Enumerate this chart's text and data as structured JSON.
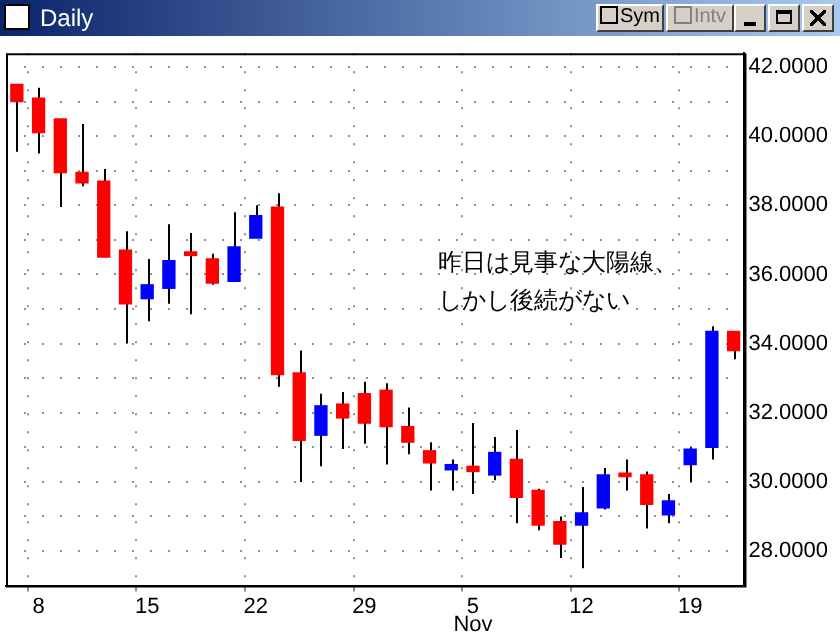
{
  "chart_data": {
    "type": "candlestick",
    "title": "Daily",
    "categories": [
      null,
      "8",
      null,
      null,
      null,
      null,
      "15",
      null,
      null,
      null,
      null,
      "22",
      null,
      null,
      null,
      null,
      "29",
      null,
      null,
      null,
      null,
      "5",
      null,
      null,
      null,
      null,
      "12",
      null,
      null,
      null,
      null,
      "19",
      null,
      null
    ],
    "ohlc": [
      [
        41.5,
        41.5,
        39.55,
        41.0
      ],
      [
        41.1,
        41.4,
        39.5,
        40.1
      ],
      [
        40.5,
        40.5,
        37.95,
        38.95
      ],
      [
        38.95,
        40.35,
        38.55,
        38.65
      ],
      [
        38.7,
        39.05,
        36.5,
        36.5
      ],
      [
        36.7,
        37.25,
        34.0,
        35.15
      ],
      [
        35.3,
        36.45,
        34.65,
        35.7
      ],
      [
        35.6,
        37.45,
        35.15,
        36.4
      ],
      [
        36.65,
        37.2,
        34.85,
        36.55
      ],
      [
        36.45,
        36.6,
        35.7,
        35.75
      ],
      [
        35.8,
        37.8,
        35.8,
        36.8
      ],
      [
        37.05,
        38.0,
        37.05,
        37.7
      ],
      [
        37.95,
        38.35,
        32.75,
        33.1
      ],
      [
        33.15,
        33.8,
        30.0,
        31.2
      ],
      [
        31.35,
        32.55,
        30.45,
        32.2
      ],
      [
        32.25,
        32.6,
        30.95,
        31.85
      ],
      [
        32.55,
        32.9,
        31.1,
        31.7
      ],
      [
        32.65,
        32.85,
        30.5,
        31.6
      ],
      [
        31.6,
        32.15,
        30.8,
        31.15
      ],
      [
        30.9,
        31.15,
        29.75,
        30.55
      ],
      [
        30.35,
        30.65,
        29.75,
        30.5
      ],
      [
        30.45,
        31.7,
        29.65,
        30.3
      ],
      [
        30.2,
        31.3,
        30.05,
        30.85
      ],
      [
        30.65,
        31.5,
        28.8,
        29.55
      ],
      [
        29.75,
        29.8,
        28.6,
        28.75
      ],
      [
        28.85,
        29.0,
        27.8,
        28.2
      ],
      [
        28.75,
        29.85,
        27.5,
        29.1
      ],
      [
        29.25,
        30.4,
        29.2,
        30.2
      ],
      [
        30.25,
        30.65,
        29.75,
        30.15
      ],
      [
        30.2,
        30.3,
        28.65,
        29.35
      ],
      [
        29.05,
        29.65,
        28.8,
        29.45
      ],
      [
        30.5,
        31.0,
        30.0,
        30.95
      ],
      [
        31.0,
        34.5,
        30.65,
        34.35
      ],
      [
        34.35,
        34.35,
        33.55,
        33.8
      ]
    ],
    "colors": [
      "#ff0000",
      "#ff0000",
      "#ff0000",
      "#ff0000",
      "#ff0000",
      "#ff0000",
      "#0000ff",
      "#0000ff",
      "#ff0000",
      "#ff0000",
      "#0000ff",
      "#0000ff",
      "#ff0000",
      "#ff0000",
      "#0000ff",
      "#ff0000",
      "#ff0000",
      "#ff0000",
      "#ff0000",
      "#ff0000",
      "#0000ff",
      "#ff0000",
      "#0000ff",
      "#ff0000",
      "#ff0000",
      "#ff0000",
      "#0000ff",
      "#0000ff",
      "#ff0000",
      "#ff0000",
      "#0000ff",
      "#0000ff",
      "#0000ff",
      "#ff0000"
    ],
    "ylim": [
      27,
      42.4
    ],
    "yticks": [
      {
        "value": 28,
        "label": "28.0000"
      },
      {
        "value": 29,
        "label": null
      },
      {
        "value": 30,
        "label": "30.0000"
      },
      {
        "value": 31,
        "label": null
      },
      {
        "value": 32,
        "label": "32.0000"
      },
      {
        "value": 33,
        "label": null
      },
      {
        "value": 34,
        "label": "34.0000"
      },
      {
        "value": 35,
        "label": null
      },
      {
        "value": 36,
        "label": "36.0000"
      },
      {
        "value": 37,
        "label": null
      },
      {
        "value": 38,
        "label": "38.0000"
      },
      {
        "value": 39,
        "label": null
      },
      {
        "value": 40,
        "label": "40.0000"
      },
      {
        "value": 41,
        "label": null
      },
      {
        "value": 42,
        "label": "42.0000"
      }
    ],
    "grid": true,
    "legend": false,
    "annotations": [
      "昨日は見事な大陽線、",
      "しかし後続がない",
      "Nov",
      "Sym",
      "Intv"
    ]
  }
}
